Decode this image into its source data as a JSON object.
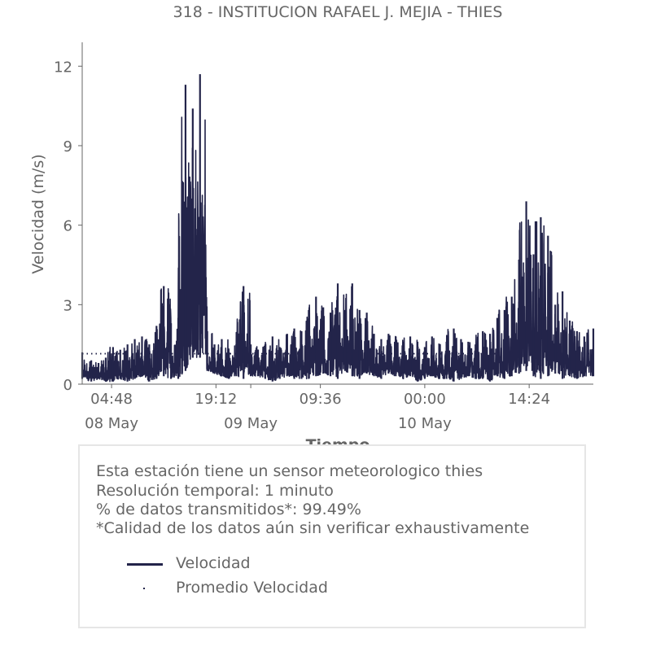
{
  "colors": {
    "series": "#23244a",
    "text": "#666666",
    "axis": "#666666",
    "legend_border": "#e6e6e6"
  },
  "chart_data": {
    "type": "line",
    "title": "318 - INSTITUCION RAFAEL J. MEJIA - THIES",
    "xlabel": "Tiempo",
    "ylabel": "Velocidad (m/s)",
    "ylim": [
      0,
      12.9
    ],
    "yticks": [
      0,
      3,
      6,
      9,
      12
    ],
    "x_start": "2024-05-08 00:45",
    "x_end": "2024-05-10 23:15",
    "xticks": [
      {
        "time": "2024-05-08 04:48",
        "label": "04:48",
        "date_label": "08 May"
      },
      {
        "time": "2024-05-08 19:12",
        "label": "19:12",
        "date_label": ""
      },
      {
        "time": "2024-05-09 00:00",
        "label": "",
        "date_label": "09 May"
      },
      {
        "time": "2024-05-09 09:36",
        "label": "09:36",
        "date_label": ""
      },
      {
        "time": "2024-05-10 00:00",
        "label": "00:00",
        "date_label": "10 May"
      },
      {
        "time": "2024-05-10 14:24",
        "label": "14:24",
        "date_label": ""
      }
    ],
    "grid": false,
    "series": [
      {
        "name": "Velocidad",
        "style": "line",
        "x": [
          "2024-05-08 00:45",
          "2024-05-08 02:00",
          "2024-05-08 03:00",
          "2024-05-08 04:00",
          "2024-05-08 05:00",
          "2024-05-08 06:00",
          "2024-05-08 07:00",
          "2024-05-08 08:00",
          "2024-05-08 09:00",
          "2024-05-08 10:00",
          "2024-05-08 11:00",
          "2024-05-08 12:00",
          "2024-05-08 13:00",
          "2024-05-08 14:00",
          "2024-05-08 15:00",
          "2024-05-08 16:00",
          "2024-05-08 17:00",
          "2024-05-08 18:00",
          "2024-05-08 19:00",
          "2024-05-08 20:00",
          "2024-05-08 21:00",
          "2024-05-08 22:00",
          "2024-05-08 23:00",
          "2024-05-09 00:00",
          "2024-05-09 01:00",
          "2024-05-09 02:00",
          "2024-05-09 03:00",
          "2024-05-09 04:00",
          "2024-05-09 05:00",
          "2024-05-09 06:00",
          "2024-05-09 07:00",
          "2024-05-09 08:00",
          "2024-05-09 09:00",
          "2024-05-09 10:00",
          "2024-05-09 11:00",
          "2024-05-09 12:00",
          "2024-05-09 13:00",
          "2024-05-09 14:00",
          "2024-05-09 15:00",
          "2024-05-09 16:00",
          "2024-05-09 17:00",
          "2024-05-09 18:00",
          "2024-05-09 19:00",
          "2024-05-09 20:00",
          "2024-05-09 21:00",
          "2024-05-09 22:00",
          "2024-05-09 23:00",
          "2024-05-10 00:00",
          "2024-05-10 01:00",
          "2024-05-10 02:00",
          "2024-05-10 03:00",
          "2024-05-10 04:00",
          "2024-05-10 05:00",
          "2024-05-10 06:00",
          "2024-05-10 07:00",
          "2024-05-10 08:00",
          "2024-05-10 09:00",
          "2024-05-10 10:00",
          "2024-05-10 11:00",
          "2024-05-10 12:00",
          "2024-05-10 13:00",
          "2024-05-10 14:00",
          "2024-05-10 15:00",
          "2024-05-10 16:00",
          "2024-05-10 17:00",
          "2024-05-10 18:00",
          "2024-05-10 19:00",
          "2024-05-10 20:00",
          "2024-05-10 21:00",
          "2024-05-10 22:00",
          "2024-05-10 23:15"
        ],
        "lows": [
          0.2,
          0.1,
          0.2,
          0.1,
          0.1,
          0.2,
          0.1,
          0.2,
          0.3,
          0.1,
          0.2,
          0.3,
          0.2,
          0.2,
          0.5,
          1.0,
          1.0,
          0.5,
          0.4,
          0.3,
          0.2,
          0.3,
          0.2,
          0.3,
          0.3,
          0.2,
          0.1,
          0.2,
          0.3,
          0.2,
          0.2,
          0.2,
          0.3,
          0.4,
          0.3,
          0.2,
          0.5,
          0.3,
          0.2,
          0.4,
          0.3,
          0.2,
          0.4,
          0.3,
          0.2,
          0.3,
          0.1,
          0.2,
          0.3,
          0.2,
          0.2,
          0.1,
          0.2,
          0.3,
          0.2,
          0.2,
          0.1,
          0.3,
          0.2,
          0.3,
          0.4,
          0.5,
          0.3,
          0.2,
          0.3,
          0.4,
          0.2,
          0.3,
          0.2,
          0.3,
          0.3
        ],
        "highs": [
          1.2,
          0.9,
          0.8,
          1.0,
          1.4,
          1.3,
          1.5,
          1.7,
          1.8,
          1.5,
          2.2,
          3.7,
          2.3,
          2.5,
          11.3,
          10.4,
          11.7,
          2.0,
          1.5,
          1.7,
          1.2,
          1.5,
          3.7,
          1.5,
          1.3,
          1.5,
          1.8,
          1.4,
          1.9,
          2.1,
          2.0,
          2.8,
          3.3,
          2.9,
          2.7,
          3.8,
          2.8,
          3.8,
          2.8,
          2.7,
          1.9,
          1.7,
          1.9,
          1.8,
          1.6,
          1.8,
          1.6,
          1.4,
          1.8,
          1.3,
          1.6,
          2.1,
          1.7,
          1.6,
          1.5,
          2.0,
          1.9,
          2.5,
          2.8,
          3.3,
          4.7,
          6.9,
          4.9,
          6.3,
          5.6,
          3.0,
          3.5,
          2.4,
          2.0,
          1.8,
          2.1
        ]
      },
      {
        "name": "Promedio Velocidad",
        "style": "dotted",
        "value": 1.15
      }
    ],
    "legend": {
      "placement": "below",
      "entries": [
        "Velocidad",
        "Promedio Velocidad"
      ]
    }
  },
  "info": {
    "line1": "Esta estación tiene un sensor meteorologico thies",
    "line2": "Resolución temporal: 1 minuto",
    "line3": "% de datos transmitidos*: 99.49%",
    "line4": "*Calidad de los datos aún sin verificar exhaustivamente"
  }
}
